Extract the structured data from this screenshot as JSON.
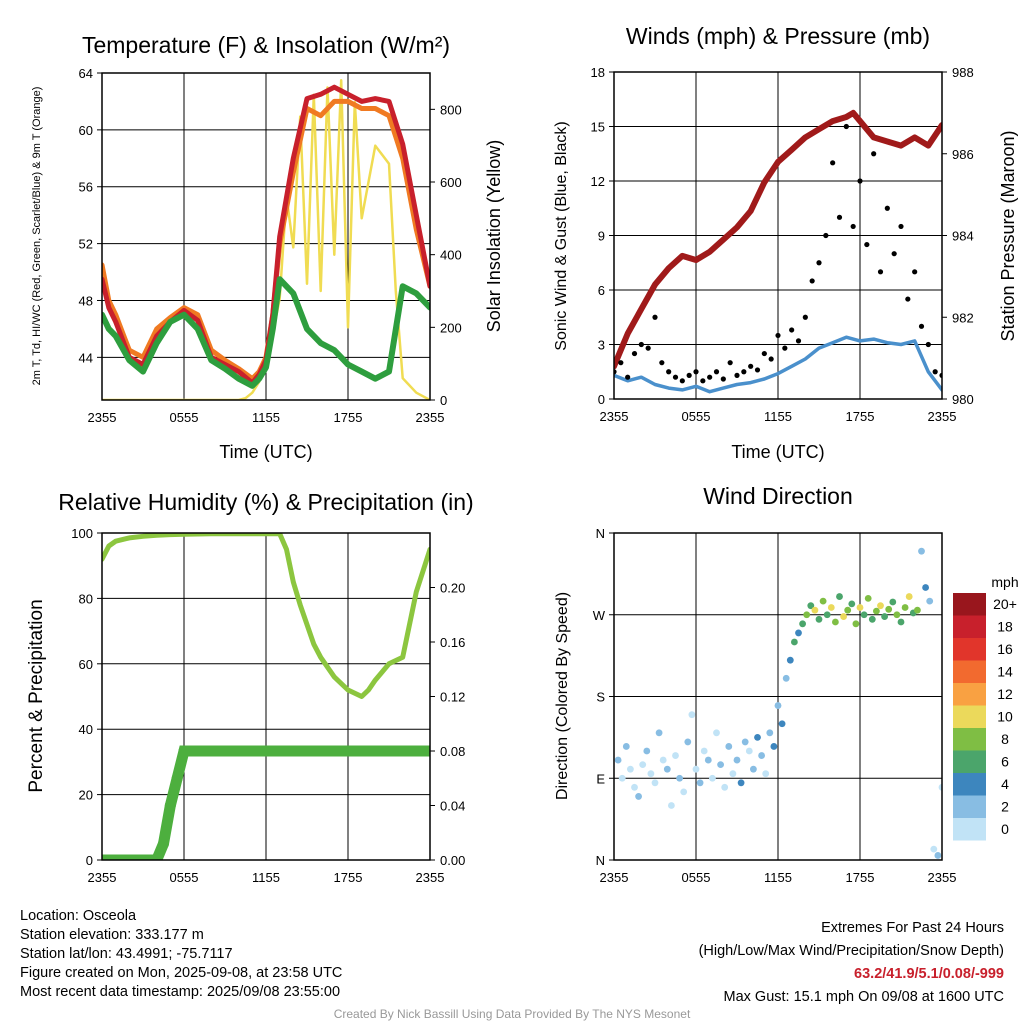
{
  "colors": {
    "t2m": "#d7191c",
    "td": "#2e9e3e",
    "scarlet": "#c8202c",
    "t9m": "#f07a22",
    "solar": "#f0dc52",
    "wind": "#4a90cc",
    "gust": "#000000",
    "pressure": "#a01a1a",
    "rh": "#8cc63f",
    "precip": "#4daf3e"
  },
  "speed_scale": {
    "unit": "mph",
    "labels": [
      "20+",
      "18",
      "16",
      "14",
      "12",
      "10",
      "8",
      "6",
      "4",
      "2",
      "0"
    ],
    "colors": [
      "#99161d",
      "#c8202c",
      "#e1352b",
      "#f26a2f",
      "#f9a142",
      "#ebd95b",
      "#7fbe44",
      "#4ba56b",
      "#3d86be",
      "#88bde3",
      "#c1e3f6"
    ]
  },
  "footer": {
    "location": "Location: Osceola",
    "elevation": "Station elevation: 333.177 m",
    "latlon": "Station lat/lon: 43.4991; -75.7117",
    "created": "Figure created on Mon, 2025-09-08, at 23:58 UTC",
    "recent": "Most recent data timestamp: 2025/09/08 23:55:00",
    "extremes_title": "Extremes For Past 24 Hours",
    "extremes_sub": "(High/Low/Max Wind/Precipitation/Snow Depth)",
    "extremes_values": "63.2/41.9/5.1/0.08/-999",
    "max_gust": "Max Gust: 15.1 mph On 09/08 at 1600 UTC",
    "credit": "Created By Nick Bassill Using Data Provided By The NYS Mesonet"
  },
  "chart_data": [
    {
      "id": "temp",
      "type": "line",
      "title": "Temperature (F) & Insolation (W/m²)",
      "xlabel": "Time (UTC)",
      "ylabel": "2m T, Td, HI/WC (Red, Green, Scarlet/Blue) & 9m T (Orange)",
      "y2label": "Solar Insolation (Yellow)",
      "xticks": [
        "2355",
        "0555",
        "1155",
        "1755",
        "2355"
      ],
      "xlim": [
        0,
        24
      ],
      "ylim": [
        41,
        64
      ],
      "y2lim": [
        0,
        900
      ],
      "yticks": [
        44,
        48,
        52,
        56,
        60,
        64
      ],
      "y2ticks": [
        0,
        200,
        400,
        600,
        800
      ],
      "series": [
        {
          "color": "#f07a22",
          "axis": "left",
          "x": [
            0,
            0.5,
            1,
            2,
            3,
            4,
            5,
            6,
            7,
            8,
            9,
            10,
            11,
            11.5,
            12,
            12.5,
            13,
            14,
            15,
            16,
            17,
            18,
            19,
            20,
            21,
            22,
            23,
            24
          ],
          "y": [
            50.5,
            48,
            47,
            44.5,
            44,
            46,
            46.8,
            47.5,
            47,
            44.5,
            43.8,
            43.2,
            42.5,
            43,
            44,
            47,
            52,
            57,
            61.5,
            61,
            62,
            62,
            61.5,
            61.5,
            61,
            58,
            53,
            49
          ]
        },
        {
          "color": "#c8202c",
          "axis": "left",
          "x": [
            0,
            0.5,
            1,
            2,
            3,
            4,
            5,
            6,
            7,
            8,
            9,
            10,
            11,
            11.5,
            12,
            12.5,
            13,
            14,
            15,
            16,
            17,
            18,
            19,
            20,
            21,
            22,
            23,
            24
          ],
          "y": [
            49.5,
            47.5,
            46.5,
            44,
            43.5,
            45.5,
            46.5,
            47.3,
            46.6,
            44,
            43.5,
            43,
            42.2,
            42.8,
            43.8,
            47,
            52.5,
            58,
            62.2,
            62.5,
            63,
            62.5,
            62,
            62.2,
            62,
            59,
            54,
            49
          ]
        },
        {
          "color": "#2e9e3e",
          "axis": "left",
          "x": [
            0,
            0.5,
            1,
            2,
            3,
            4,
            5,
            6,
            7,
            8,
            9,
            10,
            11,
            11.5,
            12,
            12.5,
            13,
            14,
            15,
            16,
            17,
            18,
            19,
            20,
            21,
            22,
            23,
            24
          ],
          "y": [
            47,
            46,
            45.5,
            43.8,
            43,
            45,
            46.5,
            47,
            46,
            43.8,
            43.2,
            42.5,
            42,
            42.5,
            43.3,
            46,
            49.5,
            48.5,
            46,
            45,
            44.5,
            43.5,
            43,
            42.5,
            43,
            49,
            48.5,
            47.5
          ]
        },
        {
          "color": "#f0dc52",
          "axis": "right",
          "x": [
            0,
            2,
            4,
            6,
            8,
            10,
            10.5,
            11,
            11.5,
            12,
            12.5,
            13,
            13.5,
            14,
            14.5,
            15,
            15.5,
            16,
            16.5,
            17,
            17.5,
            18,
            18.5,
            19,
            20,
            21,
            21.5,
            22,
            23,
            24
          ],
          "y": [
            0,
            0,
            0,
            0,
            0,
            0,
            5,
            20,
            50,
            100,
            180,
            280,
            560,
            420,
            780,
            320,
            840,
            300,
            860,
            400,
            880,
            200,
            820,
            500,
            700,
            650,
            300,
            60,
            20,
            0
          ]
        }
      ]
    },
    {
      "id": "wind",
      "type": "line",
      "title": "Winds (mph) & Pressure (mb)",
      "xlabel": "Time (UTC)",
      "ylabel": "Sonic Wind & Gust (Blue, Black)",
      "y2label": "Station Pressure (Maroon)",
      "xticks": [
        "2355",
        "0555",
        "1155",
        "1755",
        "2355"
      ],
      "xlim": [
        0,
        24
      ],
      "ylim": [
        0,
        18
      ],
      "y2lim": [
        980,
        988
      ],
      "yticks": [
        0,
        3,
        6,
        9,
        12,
        15,
        18
      ],
      "y2ticks": [
        980,
        982,
        984,
        986,
        988
      ],
      "series": [
        {
          "name": "pressure",
          "color": "#a01a1a",
          "axis": "right",
          "x": [
            0,
            1,
            2,
            3,
            4,
            5,
            6,
            7,
            8,
            9,
            10,
            11,
            12,
            13,
            14,
            15,
            16,
            17,
            17.5,
            18,
            19,
            20,
            21,
            22,
            23,
            24
          ],
          "y": [
            980.8,
            981.6,
            982.2,
            982.8,
            983.2,
            983.5,
            983.4,
            983.6,
            983.9,
            984.2,
            984.6,
            985.3,
            985.8,
            986.1,
            986.4,
            986.6,
            986.8,
            986.9,
            987.0,
            986.8,
            986.4,
            986.3,
            986.2,
            986.4,
            986.2,
            986.7
          ]
        },
        {
          "name": "wind",
          "color": "#4a90cc",
          "axis": "left",
          "x": [
            0,
            1,
            2,
            3,
            4,
            5,
            6,
            7,
            8,
            9,
            10,
            11,
            12,
            13,
            14,
            15,
            16,
            17,
            18,
            19,
            20,
            21,
            22,
            23,
            24
          ],
          "y": [
            1.3,
            1.0,
            1.2,
            0.8,
            0.6,
            0.5,
            0.7,
            0.4,
            0.6,
            0.8,
            0.9,
            1.1,
            1.4,
            1.8,
            2.2,
            2.8,
            3.1,
            3.4,
            3.2,
            3.3,
            3.1,
            3.0,
            3.2,
            1.5,
            0.5
          ]
        },
        {
          "name": "gust",
          "color": "#000000",
          "axis": "left",
          "type": "scatter",
          "x": [
            0,
            0.5,
            1,
            1.5,
            2,
            2.5,
            3,
            3.5,
            4,
            4.5,
            5,
            5.5,
            6,
            6.5,
            7,
            7.5,
            8,
            8.5,
            9,
            9.5,
            10,
            10.5,
            11,
            11.5,
            12,
            12.5,
            13,
            13.5,
            14,
            14.5,
            15,
            15.5,
            16,
            16.5,
            17,
            17.5,
            18,
            18.5,
            19,
            19.5,
            20,
            20.5,
            21,
            21.5,
            22,
            22.5,
            23,
            23.5,
            24
          ],
          "y": [
            1.5,
            2,
            1.2,
            2.5,
            3,
            2.8,
            4.5,
            2,
            1.5,
            1.2,
            1,
            1.3,
            1.5,
            1,
            1.2,
            1.5,
            1.1,
            2,
            1.3,
            1.5,
            1.8,
            1.6,
            2.5,
            2.2,
            3.5,
            2.8,
            3.8,
            3.2,
            4.5,
            6.5,
            7.5,
            9,
            13,
            10,
            15,
            9.5,
            12,
            8.5,
            13.5,
            7,
            10.5,
            8,
            9.5,
            5.5,
            7,
            4,
            3,
            1.5,
            1.3
          ]
        }
      ]
    },
    {
      "id": "rh",
      "type": "line",
      "title": "Relative Humidity (%) & Precipitation (in)",
      "xlabel": "",
      "ylabel": "Percent & Precipitation",
      "xticks": [
        "2355",
        "0555",
        "1155",
        "1755",
        "2355"
      ],
      "xlim": [
        0,
        24
      ],
      "ylim": [
        0,
        100
      ],
      "y2lim": [
        0,
        0.24
      ],
      "yticks": [
        0,
        20,
        40,
        60,
        80,
        100
      ],
      "y2ticks": [
        "0.00",
        "0.04",
        "0.08",
        "0.12",
        "0.16",
        "0.20"
      ],
      "series": [
        {
          "name": "rh",
          "color": "#8cc63f",
          "axis": "left",
          "x": [
            0,
            0.5,
            1,
            2,
            3,
            4,
            5,
            6,
            7,
            8,
            9,
            10,
            11,
            12,
            13,
            13.5,
            14,
            14.5,
            15,
            15.5,
            16,
            17,
            18,
            19,
            19.5,
            20,
            21,
            22,
            23,
            24
          ],
          "y": [
            92,
            96,
            97.5,
            98.5,
            99,
            99.3,
            99.5,
            99.6,
            99.7,
            99.8,
            99.8,
            99.8,
            99.8,
            99.8,
            99.8,
            95,
            85,
            78,
            72,
            66,
            62,
            56,
            52,
            50,
            52,
            55,
            60,
            62,
            82,
            95
          ]
        },
        {
          "name": "precip",
          "color": "#4daf3e",
          "axis": "right",
          "x": [
            0,
            1,
            2,
            3,
            4,
            4.5,
            5,
            5.5,
            6,
            7,
            8,
            10,
            12,
            14,
            16,
            18,
            20,
            22,
            24
          ],
          "y": [
            0,
            0,
            0,
            0,
            0,
            0.012,
            0.04,
            0.06,
            0.08,
            0.08,
            0.08,
            0.08,
            0.08,
            0.08,
            0.08,
            0.08,
            0.08,
            0.08,
            0.08
          ]
        }
      ]
    },
    {
      "id": "dir",
      "type": "scatter",
      "title": "Wind Direction",
      "ylabel": "Direction (Colored By Speed)",
      "xticks": [
        "2355",
        "0555",
        "1155",
        "1755",
        "2355"
      ],
      "yticks": [
        "N",
        "E",
        "S",
        "W",
        "N"
      ],
      "xlim": [
        0,
        24
      ],
      "ylim": [
        0,
        360
      ],
      "points": {
        "x": [
          0.3,
          0.6,
          0.9,
          1.2,
          1.5,
          1.8,
          2.1,
          2.4,
          2.7,
          3.0,
          3.3,
          3.6,
          3.9,
          4.2,
          4.5,
          4.8,
          5.1,
          5.4,
          5.7,
          6.0,
          6.3,
          6.6,
          6.9,
          7.2,
          7.5,
          7.8,
          8.1,
          8.4,
          8.7,
          9.0,
          9.3,
          9.6,
          9.9,
          10.2,
          10.5,
          10.8,
          11.1,
          11.4,
          11.7,
          12.0,
          12.3,
          12.6,
          12.9,
          13.2,
          13.5,
          13.8,
          14.1,
          14.4,
          14.7,
          15.0,
          15.3,
          15.6,
          15.9,
          16.2,
          16.5,
          16.8,
          17.1,
          17.4,
          17.7,
          18.0,
          18.3,
          18.6,
          18.9,
          19.2,
          19.5,
          19.8,
          20.1,
          20.4,
          20.7,
          21.0,
          21.3,
          21.6,
          21.9,
          22.2,
          22.5,
          22.8,
          23.1,
          23.4,
          23.7,
          24.0
        ],
        "dir": [
          110,
          90,
          125,
          100,
          80,
          70,
          105,
          120,
          95,
          85,
          140,
          110,
          100,
          60,
          115,
          90,
          75,
          130,
          160,
          100,
          85,
          120,
          110,
          90,
          140,
          105,
          80,
          125,
          95,
          110,
          85,
          130,
          120,
          100,
          135,
          115,
          95,
          140,
          125,
          170,
          150,
          200,
          220,
          240,
          250,
          260,
          270,
          280,
          275,
          265,
          285,
          270,
          278,
          262,
          290,
          268,
          275,
          282,
          260,
          278,
          270,
          288,
          265,
          274,
          280,
          268,
          276,
          284,
          270,
          262,
          278,
          290,
          272,
          275,
          340,
          300,
          285,
          12,
          5,
          80
        ],
        "speed": [
          1,
          0,
          1,
          0,
          0,
          1,
          0,
          1,
          0,
          0,
          1,
          0,
          1,
          0,
          0,
          1,
          0,
          1,
          0,
          0,
          1,
          0,
          1,
          0,
          0,
          1,
          0,
          1,
          0,
          1,
          2,
          1,
          0,
          1,
          2,
          1,
          0,
          1,
          2,
          1,
          2,
          1,
          2,
          3,
          2,
          3,
          4,
          3,
          5,
          3,
          4,
          3,
          5,
          4,
          3,
          5,
          4,
          3,
          4,
          5,
          3,
          4,
          3,
          4,
          5,
          3,
          4,
          3,
          4,
          3,
          4,
          5,
          3,
          4,
          1,
          2,
          1,
          0,
          1,
          0
        ]
      }
    }
  ]
}
